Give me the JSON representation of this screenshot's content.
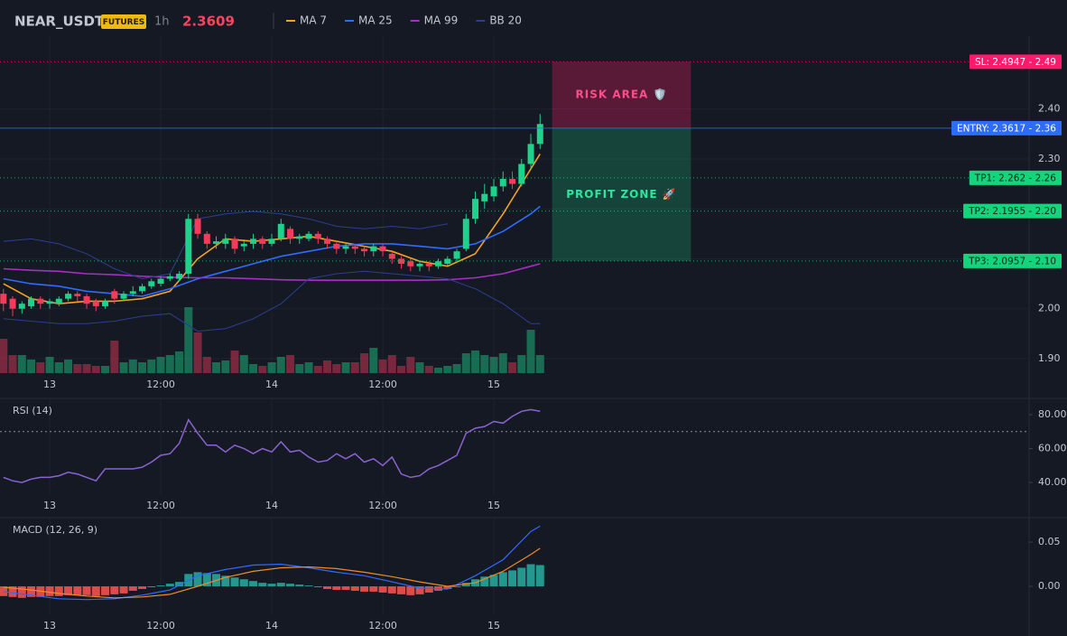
{
  "chart_data": [
    {
      "type": "candlestick",
      "title": "NEAR_USDT",
      "badge": "FUTURES",
      "interval": "1h",
      "price": 2.3609,
      "price_color": "#f6465d",
      "up_color": "#1fd18a",
      "down_color": "#f23c5a",
      "x": [
        0,
        1,
        2,
        3,
        4,
        5,
        6,
        7,
        8,
        9,
        10,
        11,
        12,
        13,
        14,
        15,
        16,
        17,
        18,
        19,
        20,
        21,
        22,
        23,
        24,
        25,
        26,
        27,
        28,
        29,
        30,
        31,
        32,
        33,
        34,
        35,
        36,
        37,
        38,
        39,
        40,
        41,
        42,
        43,
        44,
        45,
        46,
        47,
        48,
        49,
        50,
        51,
        52,
        53,
        54,
        55,
        56,
        57,
        58
      ],
      "open": [
        2.03,
        2.02,
        2.0,
        2.005,
        2.02,
        2.01,
        2.01,
        2.02,
        2.03,
        2.025,
        2.015,
        2.005,
        2.035,
        2.02,
        2.03,
        2.035,
        2.045,
        2.05,
        2.06,
        2.06,
        2.07,
        2.18,
        2.15,
        2.13,
        2.13,
        2.14,
        2.125,
        2.13,
        2.14,
        2.13,
        2.14,
        2.16,
        2.14,
        2.14,
        2.15,
        2.14,
        2.13,
        2.12,
        2.125,
        2.12,
        2.115,
        2.125,
        2.11,
        2.1,
        2.095,
        2.085,
        2.09,
        2.085,
        2.09,
        2.1,
        2.12,
        2.18,
        2.215,
        2.225,
        2.245,
        2.26,
        2.25,
        2.29,
        2.33
      ],
      "high": [
        2.04,
        2.025,
        2.015,
        2.025,
        2.025,
        2.02,
        2.025,
        2.035,
        2.035,
        2.03,
        2.02,
        2.02,
        2.04,
        2.035,
        2.045,
        2.05,
        2.06,
        2.065,
        2.07,
        2.075,
        2.19,
        2.19,
        2.155,
        2.145,
        2.15,
        2.145,
        2.135,
        2.15,
        2.145,
        2.15,
        2.18,
        2.165,
        2.15,
        2.155,
        2.155,
        2.145,
        2.135,
        2.13,
        2.13,
        2.125,
        2.13,
        2.13,
        2.115,
        2.105,
        2.1,
        2.095,
        2.095,
        2.1,
        2.105,
        2.12,
        2.19,
        2.235,
        2.25,
        2.26,
        2.275,
        2.275,
        2.3,
        2.35,
        2.39
      ],
      "low": [
        1.995,
        1.985,
        1.99,
        2.0,
        2.0,
        2.0,
        2.005,
        2.015,
        2.015,
        2.0,
        1.995,
        2.0,
        2.01,
        2.015,
        2.025,
        2.03,
        2.04,
        2.045,
        2.055,
        2.055,
        2.06,
        2.14,
        2.12,
        2.12,
        2.12,
        2.11,
        2.115,
        2.12,
        2.12,
        2.125,
        2.135,
        2.13,
        2.13,
        2.135,
        2.13,
        2.12,
        2.11,
        2.11,
        2.11,
        2.105,
        2.105,
        2.105,
        2.09,
        2.08,
        2.075,
        2.075,
        2.075,
        2.08,
        2.085,
        2.095,
        2.115,
        2.17,
        2.2,
        2.215,
        2.235,
        2.24,
        2.245,
        2.28,
        2.32
      ],
      "close": [
        2.01,
        2.0,
        2.01,
        2.02,
        2.01,
        2.015,
        2.02,
        2.03,
        2.025,
        2.01,
        2.005,
        2.015,
        2.02,
        2.03,
        2.035,
        2.045,
        2.055,
        2.06,
        2.065,
        2.07,
        2.18,
        2.15,
        2.13,
        2.135,
        2.14,
        2.12,
        2.13,
        2.14,
        2.13,
        2.14,
        2.17,
        2.14,
        2.145,
        2.15,
        2.14,
        2.13,
        2.12,
        2.125,
        2.12,
        2.115,
        2.125,
        2.115,
        2.1,
        2.09,
        2.085,
        2.09,
        2.085,
        2.095,
        2.1,
        2.115,
        2.18,
        2.22,
        2.23,
        2.245,
        2.26,
        2.25,
        2.29,
        2.33,
        2.37
      ],
      "volume": [
        38,
        20,
        20,
        15,
        12,
        18,
        12,
        15,
        10,
        10,
        8,
        8,
        36,
        12,
        15,
        12,
        15,
        18,
        20,
        24,
        73,
        45,
        18,
        12,
        14,
        25,
        20,
        10,
        8,
        12,
        18,
        20,
        10,
        12,
        8,
        14,
        10,
        12,
        12,
        22,
        28,
        15,
        20,
        8,
        18,
        12,
        8,
        6,
        8,
        10,
        22,
        25,
        20,
        18,
        22,
        12,
        20,
        48,
        20
      ],
      "volume_lim": [
        0,
        100
      ],
      "series": [
        {
          "name": "MA 7",
          "color": "#f7a21b",
          "x": [
            0,
            3,
            6,
            9,
            12,
            15,
            18,
            21,
            24,
            27,
            30,
            33,
            36,
            39,
            42,
            45,
            48,
            51,
            54,
            57,
            58
          ],
          "values": [
            2.05,
            2.02,
            2.01,
            2.015,
            2.015,
            2.02,
            2.035,
            2.1,
            2.14,
            2.135,
            2.14,
            2.145,
            2.135,
            2.125,
            2.115,
            2.095,
            2.085,
            2.11,
            2.19,
            2.28,
            2.31
          ]
        },
        {
          "name": "MA 25",
          "color": "#2f6bff",
          "x": [
            0,
            3,
            6,
            9,
            12,
            15,
            18,
            21,
            24,
            27,
            30,
            33,
            36,
            39,
            42,
            45,
            48,
            51,
            54,
            57,
            58
          ],
          "values": [
            2.06,
            2.05,
            2.045,
            2.035,
            2.03,
            2.025,
            2.04,
            2.06,
            2.075,
            2.09,
            2.105,
            2.115,
            2.125,
            2.13,
            2.13,
            2.125,
            2.12,
            2.13,
            2.155,
            2.19,
            2.205
          ]
        },
        {
          "name": "MA 99",
          "color": "#a52fc2",
          "x": [
            0,
            3,
            6,
            9,
            12,
            15,
            18,
            21,
            24,
            27,
            30,
            33,
            36,
            39,
            42,
            45,
            48,
            51,
            54,
            57,
            58
          ],
          "values": [
            2.08,
            2.077,
            2.075,
            2.07,
            2.068,
            2.065,
            2.063,
            2.062,
            2.062,
            2.06,
            2.058,
            2.057,
            2.057,
            2.057,
            2.057,
            2.057,
            2.058,
            2.062,
            2.07,
            2.085,
            2.09
          ]
        },
        {
          "name": "BB 20",
          "color": "#2b3f8f",
          "x": [
            0,
            3,
            6,
            9,
            12,
            15,
            18,
            21,
            24,
            27,
            30,
            33,
            36,
            39,
            42,
            45,
            48,
            51,
            54,
            57,
            58
          ],
          "upper": [
            2.135,
            2.14,
            2.13,
            2.11,
            2.08,
            2.06,
            2.07,
            2.18,
            2.19,
            2.195,
            2.19,
            2.18,
            2.165,
            2.16,
            2.165,
            2.16,
            2.17,
            null,
            null,
            null,
            null
          ],
          "lower": [
            1.98,
            1.975,
            1.97,
            1.97,
            1.975,
            1.985,
            1.99,
            1.955,
            1.96,
            1.98,
            2.01,
            2.06,
            2.07,
            2.075,
            2.07,
            2.065,
            2.06,
            2.04,
            2.01,
            1.97,
            1.97
          ]
        }
      ],
      "levels": [
        {
          "label": "SL: 2.4947 - 2.49",
          "value": 2.4947,
          "color": "#ff1a6c",
          "text_color": "#ffffff",
          "style": "dotted"
        },
        {
          "label": "ENTRY: 2.3617 - 2.36",
          "value": 2.3617,
          "color": "#2f6bff",
          "text_color": "#ffffff",
          "style": "solid"
        },
        {
          "label": "TP1: 2.262 - 2.26",
          "value": 2.262,
          "color": "#16d47b",
          "text_color": "#0b2a1a",
          "style": "dotted"
        },
        {
          "label": "TP2: 2.1955 - 2.20",
          "value": 2.1955,
          "color": "#16d47b",
          "text_color": "#0b2a1a",
          "style": "dotted"
        },
        {
          "label": "TP3: 2.0957 - 2.10",
          "value": 2.0957,
          "color": "#16d47b",
          "text_color": "#0b2a1a",
          "style": "dotted"
        }
      ],
      "zones": [
        {
          "label": "RISK AREA 🛡️",
          "x": [
            59.3,
            74.3
          ],
          "range": [
            2.3617,
            2.4947
          ],
          "color": "#e91e63",
          "text_color": "#ff4d8a"
        },
        {
          "label": "PROFIT ZONE 🚀",
          "x": [
            59.3,
            74.3
          ],
          "range": [
            2.0957,
            2.3617
          ],
          "color": "#1aa36a",
          "text_color": "#2ee59d"
        }
      ],
      "xlim": [
        -0.37,
        110.85
      ],
      "xticks": [
        {
          "value": 5,
          "label": "13"
        },
        {
          "value": 17,
          "label": "12:00"
        },
        {
          "value": 29,
          "label": "14"
        },
        {
          "value": 41,
          "label": "12:00"
        },
        {
          "value": 53,
          "label": "15"
        }
      ],
      "ylim": [
        1.871,
        2.546
      ],
      "yticks": [
        {
          "value": 2.4,
          "label": "2.40"
        },
        {
          "value": 2.3,
          "label": "2.30"
        },
        {
          "value": 2.2,
          "label": "2.20"
        },
        {
          "value": 2.1,
          "label": "2.10"
        },
        {
          "value": 2.0,
          "label": "2.00"
        },
        {
          "value": 1.9,
          "label": "1.90"
        }
      ],
      "grid": true
    },
    {
      "type": "line",
      "title": "RSI (14)",
      "color": "#8a63d2",
      "x": [
        0,
        1,
        2,
        3,
        4,
        5,
        6,
        7,
        8,
        9,
        10,
        11,
        12,
        13,
        14,
        15,
        16,
        17,
        18,
        19,
        20,
        21,
        22,
        23,
        24,
        25,
        26,
        27,
        28,
        29,
        30,
        31,
        32,
        33,
        34,
        35,
        36,
        37,
        38,
        39,
        40,
        41,
        42,
        43,
        44,
        45,
        46,
        47,
        48,
        49,
        50,
        51,
        52,
        53,
        54,
        55,
        56,
        57,
        58
      ],
      "values": [
        43,
        41,
        40,
        42,
        43,
        43,
        44,
        46,
        45,
        43,
        41,
        48,
        48,
        48,
        48,
        49,
        52,
        56,
        57,
        63,
        77,
        69,
        62,
        62,
        58,
        62,
        60,
        57,
        60,
        58,
        64,
        58,
        59,
        55,
        52,
        53,
        57,
        54,
        57,
        52,
        54,
        50,
        55,
        45,
        43,
        44,
        48,
        50,
        53,
        56,
        69,
        72,
        73,
        76,
        75,
        79,
        82,
        83,
        82
      ],
      "hline": 70,
      "ylim": [
        33.1,
        89.6
      ],
      "yticks": [
        {
          "value": 80,
          "label": "80.00"
        },
        {
          "value": 60,
          "label": "60.00"
        },
        {
          "value": 40,
          "label": "40.00"
        }
      ]
    },
    {
      "type": "macd",
      "title": "MACD (12, 26, 9)",
      "up_color": "#26a69a",
      "down_color": "#ef5350",
      "x": [
        0,
        1,
        2,
        3,
        4,
        5,
        6,
        7,
        8,
        9,
        10,
        11,
        12,
        13,
        14,
        15,
        16,
        17,
        18,
        19,
        20,
        21,
        22,
        23,
        24,
        25,
        26,
        27,
        28,
        29,
        30,
        31,
        32,
        33,
        34,
        35,
        36,
        37,
        38,
        39,
        40,
        41,
        42,
        43,
        44,
        45,
        46,
        47,
        48,
        49,
        50,
        51,
        52,
        53,
        54,
        55,
        56,
        57,
        58
      ],
      "values": [
        -0.011,
        -0.012,
        -0.013,
        -0.012,
        -0.012,
        -0.011,
        -0.011,
        -0.01,
        -0.01,
        -0.01,
        -0.011,
        -0.01,
        -0.009,
        -0.008,
        -0.005,
        -0.003,
        -0.001,
        0.001,
        0.003,
        0.005,
        0.014,
        0.016,
        0.015,
        0.014,
        0.012,
        0.01,
        0.008,
        0.006,
        0.004,
        0.003,
        0.004,
        0.003,
        0.002,
        0.001,
        -0.001,
        -0.003,
        -0.004,
        -0.004,
        -0.005,
        -0.006,
        -0.006,
        -0.007,
        -0.008,
        -0.009,
        -0.01,
        -0.009,
        -0.007,
        -0.005,
        -0.003,
        -0.001,
        0.004,
        0.008,
        0.011,
        0.013,
        0.016,
        0.018,
        0.021,
        0.025,
        0.024
      ],
      "macd": {
        "color": "#2f6bff",
        "x": [
          0,
          3,
          6,
          9,
          12,
          15,
          18,
          21,
          24,
          27,
          30,
          33,
          36,
          39,
          42,
          45,
          48,
          51,
          54,
          57,
          58
        ],
        "values": [
          -0.006,
          -0.01,
          -0.014,
          -0.015,
          -0.014,
          -0.01,
          -0.004,
          0.012,
          0.019,
          0.024,
          0.025,
          0.021,
          0.016,
          0.012,
          0.005,
          -0.002,
          -0.003,
          0.012,
          0.03,
          0.062,
          0.068
        ]
      },
      "signal": {
        "color": "#f08a24",
        "x": [
          0,
          3,
          6,
          9,
          12,
          15,
          18,
          21,
          24,
          27,
          30,
          33,
          36,
          39,
          42,
          45,
          48,
          51,
          54,
          57,
          58
        ],
        "values": [
          -0.001,
          -0.004,
          -0.008,
          -0.011,
          -0.013,
          -0.012,
          -0.009,
          0.0,
          0.01,
          0.017,
          0.021,
          0.022,
          0.02,
          0.016,
          0.011,
          0.005,
          0.0,
          0.004,
          0.017,
          0.036,
          0.043
        ]
      },
      "ylim": [
        -0.0316,
        0.0776
      ],
      "yticks": [
        {
          "value": 0.05,
          "label": "0.05"
        },
        {
          "value": 0,
          "label": "0.00"
        }
      ]
    }
  ]
}
